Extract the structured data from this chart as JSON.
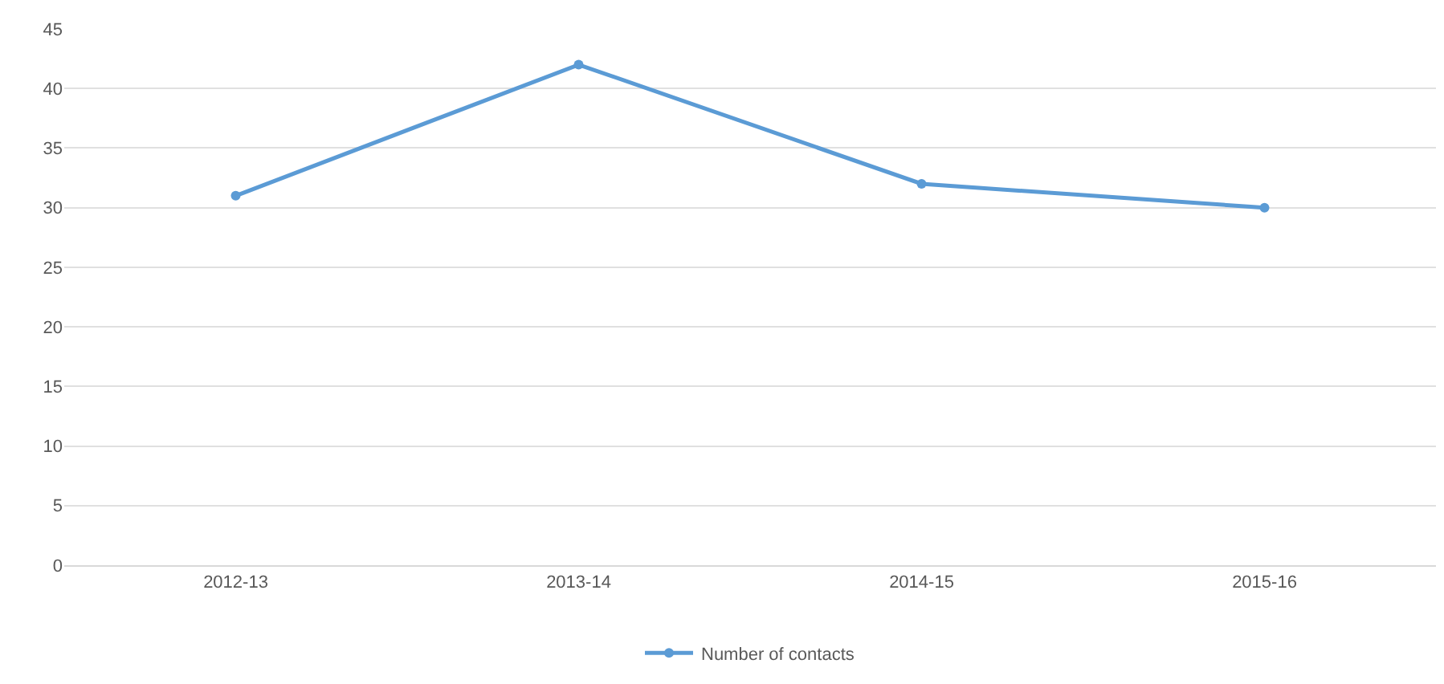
{
  "chart_data": {
    "type": "line",
    "categories": [
      "2012-13",
      "2013-14",
      "2014-15",
      "2015-16"
    ],
    "series": [
      {
        "name": "Number of contacts",
        "color": "#5b9bd5",
        "values": [
          31,
          42,
          32,
          30
        ]
      }
    ],
    "ylim": [
      0,
      45
    ],
    "yticks": [
      0,
      5,
      10,
      15,
      20,
      25,
      30,
      35,
      40,
      45
    ],
    "grid": "y",
    "legend": "bottom",
    "marker": "circle",
    "line_style": "solid"
  }
}
